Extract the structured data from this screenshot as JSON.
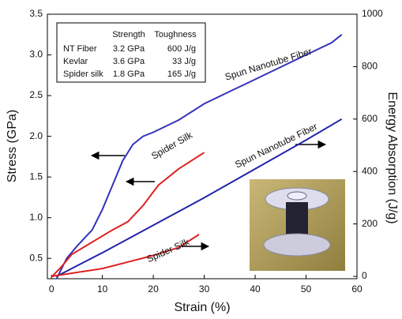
{
  "chart_data": {
    "type": "line",
    "xlabel": "Strain (%)",
    "ylabel": "Stress (GPa)",
    "y2label": "Energy Absorption (J/g)",
    "xlim": [
      -0.8,
      60
    ],
    "xticks": [
      0,
      10,
      20,
      30,
      40,
      50,
      60
    ],
    "ylim": [
      0.25,
      3.5
    ],
    "yticks": [
      0.5,
      {
        "value": 1,
        "label": "1.0"
      },
      1.5,
      {
        "value": 2,
        "label": "2.0"
      },
      2.5,
      {
        "value": 3,
        "label": "3.0"
      },
      3.5
    ],
    "y2lim": [
      -9,
      1000
    ],
    "y2ticks": [
      0,
      200,
      400,
      600,
      800,
      1000
    ],
    "series": [
      {
        "name": "Spun Nanotube Fiber",
        "color": "#3333bb",
        "x": [
          1,
          3,
          5,
          8,
          10,
          12,
          14,
          16,
          18,
          20,
          25,
          30,
          35,
          40,
          45,
          50,
          55,
          57
        ],
        "values": [
          0.25,
          0.5,
          0.65,
          0.85,
          1.1,
          1.4,
          1.7,
          1.9,
          2.0,
          2.05,
          2.2,
          2.4,
          2.55,
          2.7,
          2.85,
          3.0,
          3.15,
          3.25
        ]
      },
      {
        "name": "Spider Silk",
        "color": "#dd2222",
        "x": [
          0,
          2,
          4,
          8,
          12,
          15,
          18,
          21,
          25,
          30
        ],
        "values": [
          0.27,
          0.4,
          0.55,
          0.7,
          0.85,
          0.95,
          1.15,
          1.4,
          1.6,
          1.8
        ]
      },
      {
        "name": "Spun Nanotube Fiber",
        "color": "#2222aa",
        "axis": "y2",
        "x": [
          1,
          10,
          20,
          30,
          40,
          50,
          57
        ],
        "values": [
          0,
          90,
          195,
          300,
          410,
          520,
          600
        ]
      },
      {
        "name": "Spider Silk",
        "color": "#dd2222",
        "axis": "y2",
        "x": [
          0,
          5,
          10,
          15,
          20,
          25,
          29
        ],
        "values": [
          0,
          15,
          30,
          55,
          80,
          110,
          160
        ]
      }
    ],
    "table": {
      "header": [
        "Strength",
        "Toughness"
      ],
      "rows": [
        [
          "NT Fiber",
          "3.2 GPa",
          "600 J/g"
        ],
        [
          "Kevlar",
          "3.6 GPa",
          "33 J/g"
        ],
        [
          "Spider silk",
          "1.8 GPa",
          "165 J/g"
        ]
      ]
    }
  }
}
